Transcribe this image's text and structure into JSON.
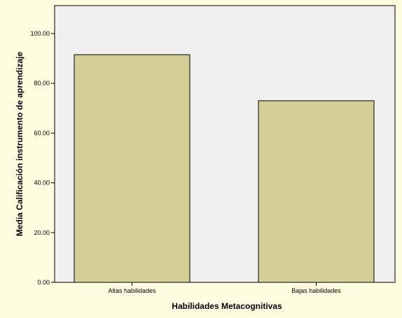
{
  "colors": {
    "page_background": "#fffde0",
    "plot_background": "#f0f0f0",
    "bar_fill": "#d4cf97",
    "bar_stroke": "#000000"
  },
  "chart_data": {
    "type": "bar",
    "title": "",
    "xlabel": "Habilidades Metacognitivas",
    "ylabel": "Media Calificación instrumento de aprendizaje",
    "categories": [
      "Altas habilidades",
      "Bajas habilidades"
    ],
    "values": [
      91.5,
      73.0
    ],
    "ylim": [
      0,
      100
    ],
    "yticks": [
      "0.00",
      "20.00",
      "40.00",
      "60.00",
      "80.00",
      "100.00"
    ],
    "grid": false,
    "legend": "none"
  }
}
